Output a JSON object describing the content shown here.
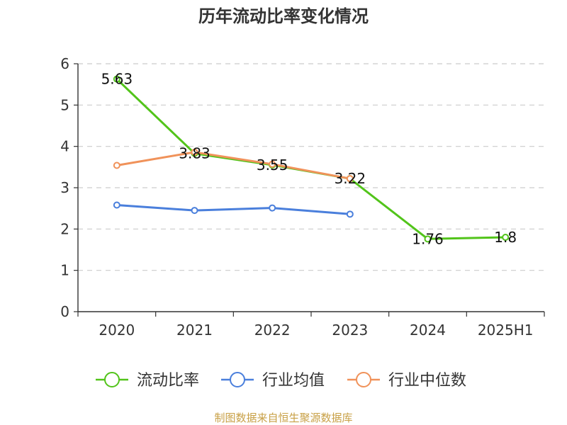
{
  "chart_data": {
    "type": "line",
    "title": "历年流动比率变化情况",
    "categories": [
      "2020",
      "2021",
      "2022",
      "2023",
      "2024",
      "2025H1"
    ],
    "ylim": [
      0,
      6
    ],
    "yticks": [
      "0",
      "1",
      "2",
      "3",
      "4",
      "5",
      "6"
    ],
    "grid": true,
    "legend_position": "bottom",
    "series": [
      {
        "name": "流动比率",
        "color": "#52c41a",
        "values": [
          5.63,
          3.83,
          3.55,
          3.22,
          1.76,
          1.8
        ],
        "labels": [
          "5.63",
          "3.83",
          "3.55",
          "3.22",
          "1.76",
          "1.8"
        ]
      },
      {
        "name": "行业均值",
        "color": "#4a7fdc",
        "values": [
          2.58,
          2.45,
          2.51,
          2.36,
          null,
          null
        ]
      },
      {
        "name": "行业中位数",
        "color": "#f0925a",
        "values": [
          3.54,
          3.86,
          3.57,
          3.22,
          null,
          null
        ]
      }
    ]
  },
  "source_text": "制图数据来自恒生聚源数据库",
  "colors": {
    "axis": "#333333",
    "grid": "#cccccc",
    "source": "#c8a046",
    "title": "#333333"
  }
}
